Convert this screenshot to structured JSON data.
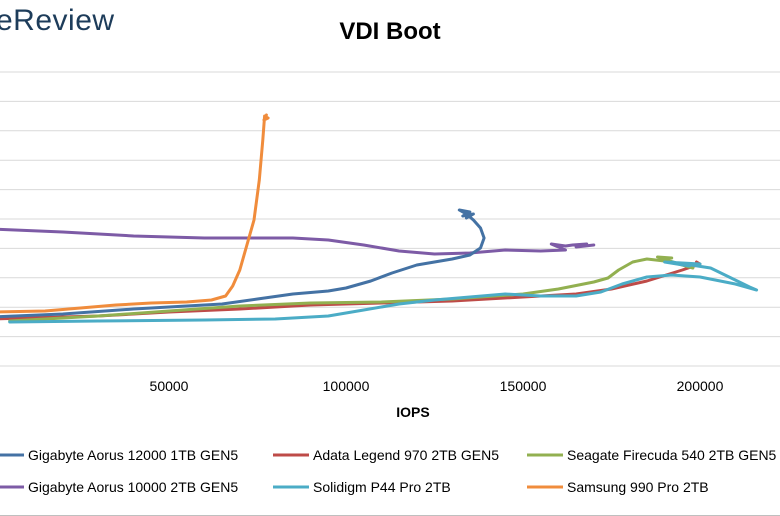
{
  "logo_text": "eReview",
  "chart_data": {
    "type": "line",
    "title": "VDI Boot",
    "xlabel": "IOPS",
    "ylabel": "",
    "xlim": [
      0,
      220000
    ],
    "x_ticks": [
      50000,
      100000,
      150000,
      200000
    ],
    "y_gridlines": 10,
    "grid": true,
    "legend_position": "bottom",
    "series": [
      {
        "name": "Gigabyte Aorus 12000 1TB GEN5",
        "color": "#4472a4",
        "points": [
          [
            0,
            317
          ],
          [
            20000,
            314
          ],
          [
            40000,
            309
          ],
          [
            55000,
            306
          ],
          [
            65000,
            304
          ],
          [
            75000,
            299
          ],
          [
            85000,
            294
          ],
          [
            95000,
            291
          ],
          [
            100000,
            288
          ],
          [
            107000,
            281
          ],
          [
            113000,
            273
          ],
          [
            120000,
            265
          ],
          [
            125000,
            262
          ],
          [
            130000,
            259
          ],
          [
            135000,
            255
          ],
          [
            138000,
            248
          ],
          [
            139000,
            238
          ],
          [
            138000,
            228
          ],
          [
            136000,
            220
          ],
          [
            134000,
            214
          ],
          [
            132000,
            210
          ],
          [
            135000,
            212
          ],
          [
            133000,
            216
          ],
          [
            136000,
            214
          ],
          [
            134000,
            218
          ]
        ]
      },
      {
        "name": "Adata Legend 970 2TB GEN5",
        "color": "#be4b48",
        "points": [
          [
            0,
            319
          ],
          [
            30000,
            316
          ],
          [
            50000,
            312
          ],
          [
            70000,
            309
          ],
          [
            90000,
            305
          ],
          [
            110000,
            303
          ],
          [
            130000,
            301
          ],
          [
            150000,
            297
          ],
          [
            165000,
            294
          ],
          [
            175000,
            289
          ],
          [
            185000,
            281
          ],
          [
            195000,
            270
          ],
          [
            200000,
            264
          ],
          [
            199000,
            262
          ]
        ]
      },
      {
        "name": "Seagate Firecuda 540 2TB GEN5",
        "color": "#92b050",
        "points": [
          [
            5000,
            321
          ],
          [
            30000,
            316
          ],
          [
            50000,
            311
          ],
          [
            70000,
            306
          ],
          [
            90000,
            303
          ],
          [
            110000,
            302
          ],
          [
            130000,
            299
          ],
          [
            150000,
            294
          ],
          [
            160000,
            289
          ],
          [
            170000,
            282
          ],
          [
            174000,
            278
          ],
          [
            177000,
            270
          ],
          [
            181000,
            262
          ],
          [
            185000,
            259
          ],
          [
            190000,
            261
          ],
          [
            194000,
            264
          ],
          [
            198000,
            268
          ],
          [
            196000,
            266
          ],
          [
            188000,
            257
          ],
          [
            192000,
            258
          ]
        ]
      },
      {
        "name": "Gigabyte Aorus 10000 2TB GEN5",
        "color": "#7d5ba6",
        "points": [
          [
            0,
            229
          ],
          [
            20000,
            232
          ],
          [
            40000,
            236
          ],
          [
            60000,
            238
          ],
          [
            75000,
            238
          ],
          [
            85000,
            238
          ],
          [
            95000,
            240
          ],
          [
            105000,
            245
          ],
          [
            115000,
            251
          ],
          [
            125000,
            254
          ],
          [
            135000,
            253
          ],
          [
            145000,
            250
          ],
          [
            155000,
            251
          ],
          [
            162000,
            250
          ],
          [
            158000,
            244
          ],
          [
            162000,
            246
          ],
          [
            164000,
            245
          ],
          [
            168000,
            244
          ],
          [
            165000,
            247
          ],
          [
            170000,
            245
          ]
        ]
      },
      {
        "name": "Solidigm P44 Pro 2TB",
        "color": "#4bacc6",
        "points": [
          [
            5000,
            322
          ],
          [
            30000,
            321
          ],
          [
            60000,
            320
          ],
          [
            80000,
            319
          ],
          [
            95000,
            316
          ],
          [
            105000,
            310
          ],
          [
            115000,
            304
          ],
          [
            125000,
            300
          ],
          [
            135000,
            297
          ],
          [
            145000,
            294
          ],
          [
            155000,
            296
          ],
          [
            165000,
            296
          ],
          [
            172000,
            292
          ],
          [
            178000,
            284
          ],
          [
            185000,
            277
          ],
          [
            192000,
            275
          ],
          [
            200000,
            277
          ],
          [
            210000,
            284
          ],
          [
            216000,
            290
          ],
          [
            214000,
            287
          ],
          [
            203000,
            268
          ],
          [
            192000,
            262
          ],
          [
            197000,
            266
          ],
          [
            190000,
            262
          ],
          [
            200000,
            264
          ]
        ]
      },
      {
        "name": "Samsung 990 Pro 2TB",
        "color": "#f08c3c",
        "points": [
          [
            0,
            312
          ],
          [
            15000,
            311
          ],
          [
            25000,
            308
          ],
          [
            35000,
            305
          ],
          [
            45000,
            303
          ],
          [
            55000,
            302
          ],
          [
            62000,
            300
          ],
          [
            66000,
            296
          ],
          [
            68000,
            286
          ],
          [
            70000,
            270
          ],
          [
            72000,
            245
          ],
          [
            74000,
            220
          ],
          [
            75500,
            180
          ],
          [
            76500,
            140
          ],
          [
            77000,
            116
          ],
          [
            78000,
            118
          ],
          [
            76800,
            120
          ],
          [
            77500,
            115
          ]
        ]
      }
    ]
  }
}
